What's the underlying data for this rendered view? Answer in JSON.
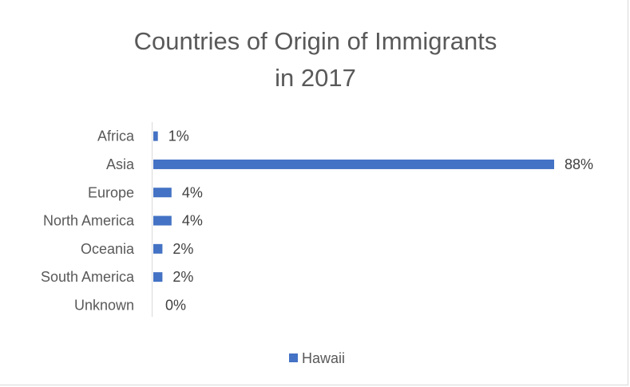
{
  "chart_data": {
    "type": "bar",
    "orientation": "horizontal",
    "title": "Countries of Origin of Immigrants in 2017",
    "title_lines": [
      "Countries of Origin of Immigrants",
      "in 2017"
    ],
    "categories": [
      "Africa",
      "Asia",
      "Europe",
      "North America",
      "Oceania",
      "South America",
      "Unknown"
    ],
    "series": [
      {
        "name": "Hawaii",
        "values": [
          1,
          88,
          4,
          4,
          2,
          2,
          0
        ],
        "labels": [
          "1%",
          "88%",
          "4%",
          "4%",
          "2%",
          "2%",
          "0%"
        ],
        "color": "#4472c4"
      }
    ],
    "xlim": [
      0,
      88
    ],
    "grid": false,
    "legend_position": "bottom"
  }
}
